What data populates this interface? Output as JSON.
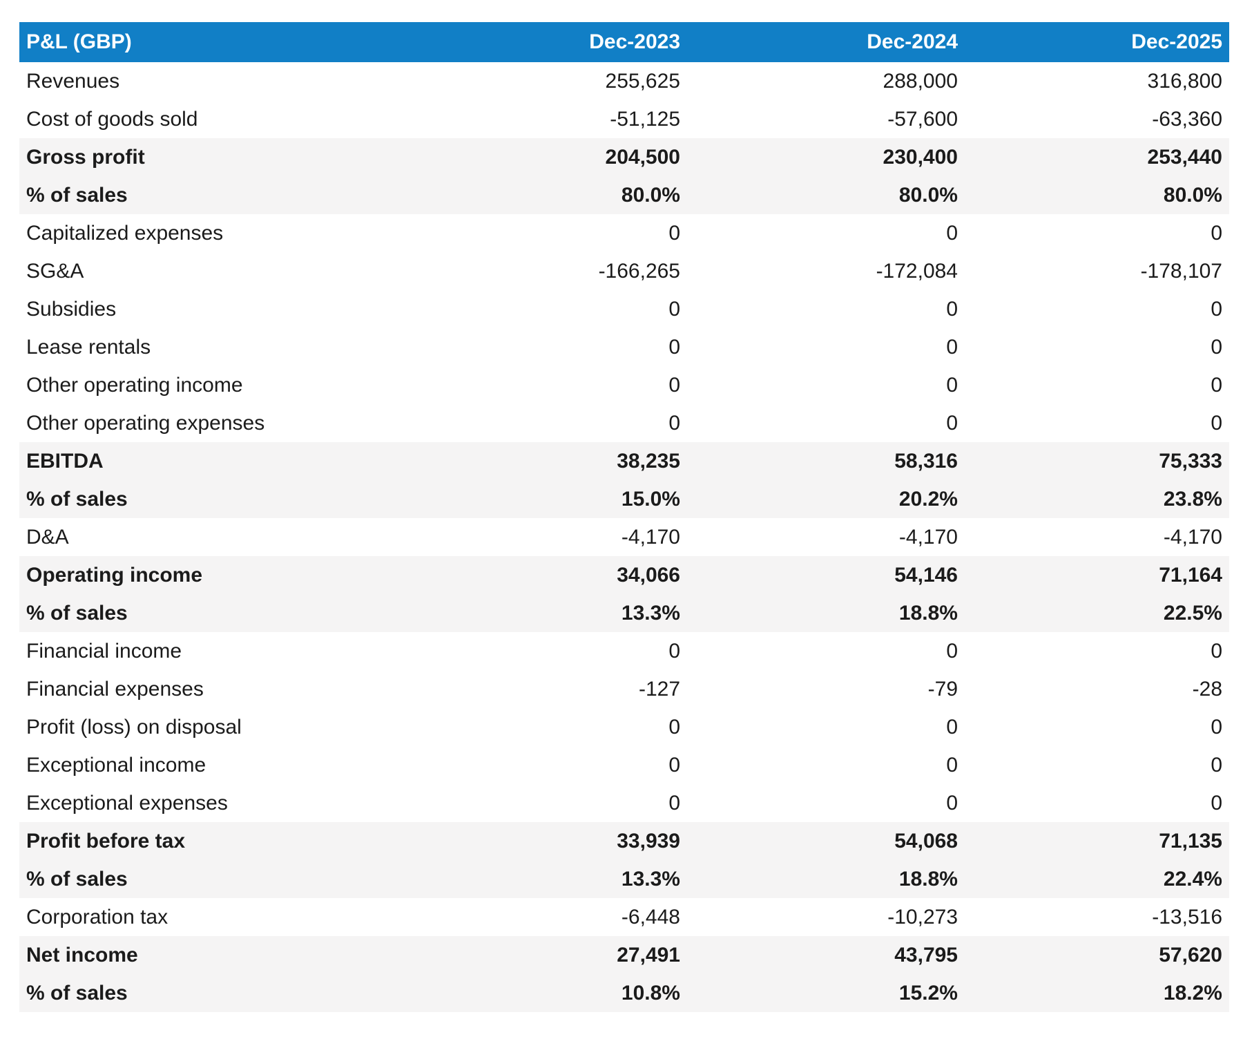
{
  "colors": {
    "header_bg": "#117fc6",
    "header_text": "#ffffff",
    "section_row_bg": "#f5f4f4",
    "body_text": "#1b1b1b",
    "page_bg": "#ffffff"
  },
  "table": {
    "header": {
      "label": "P&L (GBP)",
      "columns": [
        "Dec-2023",
        "Dec-2024",
        "Dec-2025"
      ]
    },
    "rows": [
      {
        "label": "Revenues",
        "values": [
          "255,625",
          "288,000",
          "316,800"
        ],
        "section": false
      },
      {
        "label": "Cost of goods sold",
        "values": [
          "-51,125",
          "-57,600",
          "-63,360"
        ],
        "section": false
      },
      {
        "label": "Gross profit",
        "values": [
          "204,500",
          "230,400",
          "253,440"
        ],
        "section": true
      },
      {
        "label": "% of sales",
        "values": [
          "80.0%",
          "80.0%",
          "80.0%"
        ],
        "section": true
      },
      {
        "label": "Capitalized expenses",
        "values": [
          "0",
          "0",
          "0"
        ],
        "section": false
      },
      {
        "label": "SG&A",
        "values": [
          "-166,265",
          "-172,084",
          "-178,107"
        ],
        "section": false
      },
      {
        "label": "Subsidies",
        "values": [
          "0",
          "0",
          "0"
        ],
        "section": false
      },
      {
        "label": "Lease rentals",
        "values": [
          "0",
          "0",
          "0"
        ],
        "section": false
      },
      {
        "label": "Other operating income",
        "values": [
          "0",
          "0",
          "0"
        ],
        "section": false
      },
      {
        "label": "Other operating expenses",
        "values": [
          "0",
          "0",
          "0"
        ],
        "section": false
      },
      {
        "label": "EBITDA",
        "values": [
          "38,235",
          "58,316",
          "75,333"
        ],
        "section": true
      },
      {
        "label": "% of sales",
        "values": [
          "15.0%",
          "20.2%",
          "23.8%"
        ],
        "section": true
      },
      {
        "label": "D&A",
        "values": [
          "-4,170",
          "-4,170",
          "-4,170"
        ],
        "section": false
      },
      {
        "label": "Operating income",
        "values": [
          "34,066",
          "54,146",
          "71,164"
        ],
        "section": true
      },
      {
        "label": "% of sales",
        "values": [
          "13.3%",
          "18.8%",
          "22.5%"
        ],
        "section": true
      },
      {
        "label": "Financial income",
        "values": [
          "0",
          "0",
          "0"
        ],
        "section": false
      },
      {
        "label": "Financial expenses",
        "values": [
          "-127",
          "-79",
          "-28"
        ],
        "section": false
      },
      {
        "label": "Profit (loss) on disposal",
        "values": [
          "0",
          "0",
          "0"
        ],
        "section": false
      },
      {
        "label": "Exceptional income",
        "values": [
          "0",
          "0",
          "0"
        ],
        "section": false
      },
      {
        "label": "Exceptional expenses",
        "values": [
          "0",
          "0",
          "0"
        ],
        "section": false
      },
      {
        "label": "Profit before tax",
        "values": [
          "33,939",
          "54,068",
          "71,135"
        ],
        "section": true
      },
      {
        "label": "% of sales",
        "values": [
          "13.3%",
          "18.8%",
          "22.4%"
        ],
        "section": true
      },
      {
        "label": "Corporation tax",
        "values": [
          "-6,448",
          "-10,273",
          "-13,516"
        ],
        "section": false
      },
      {
        "label": "Net income",
        "values": [
          "27,491",
          "43,795",
          "57,620"
        ],
        "section": true
      },
      {
        "label": "% of sales",
        "values": [
          "10.8%",
          "15.2%",
          "18.2%"
        ],
        "section": true
      }
    ]
  }
}
